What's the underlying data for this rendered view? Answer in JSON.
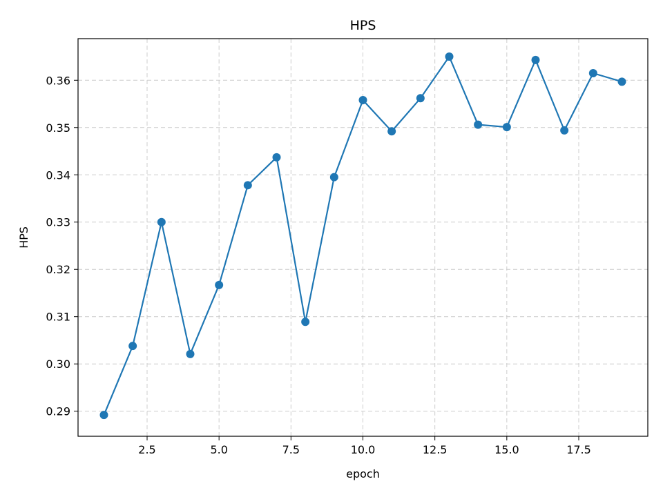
{
  "chart_data": {
    "type": "line",
    "title": "HPS",
    "xlabel": "epoch",
    "ylabel": "HPS",
    "x": [
      1,
      2,
      3,
      4,
      5,
      6,
      7,
      8,
      9,
      10,
      11,
      12,
      13,
      14,
      15,
      16,
      17,
      18,
      19
    ],
    "series": [
      {
        "values": [
          0.2892,
          0.3038,
          0.33,
          0.3021,
          0.3167,
          0.3378,
          0.3437,
          0.3089,
          0.3395,
          0.3558,
          0.3492,
          0.3562,
          0.365,
          0.3506,
          0.3501,
          0.3643,
          0.3494,
          0.3615,
          0.3597
        ],
        "color": "#1f77b4",
        "marker": "circle"
      }
    ],
    "xlim": [
      0.1,
      19.9
    ],
    "ylim": [
      0.2847,
      0.3688
    ],
    "x_ticks": [
      "2.5",
      "5.0",
      "7.5",
      "10.0",
      "12.5",
      "15.0",
      "17.5"
    ],
    "y_ticks": [
      "0.29",
      "0.30",
      "0.31",
      "0.32",
      "0.33",
      "0.34",
      "0.35",
      "0.36"
    ],
    "grid": true,
    "grid_style": "dashed",
    "legend": false
  }
}
